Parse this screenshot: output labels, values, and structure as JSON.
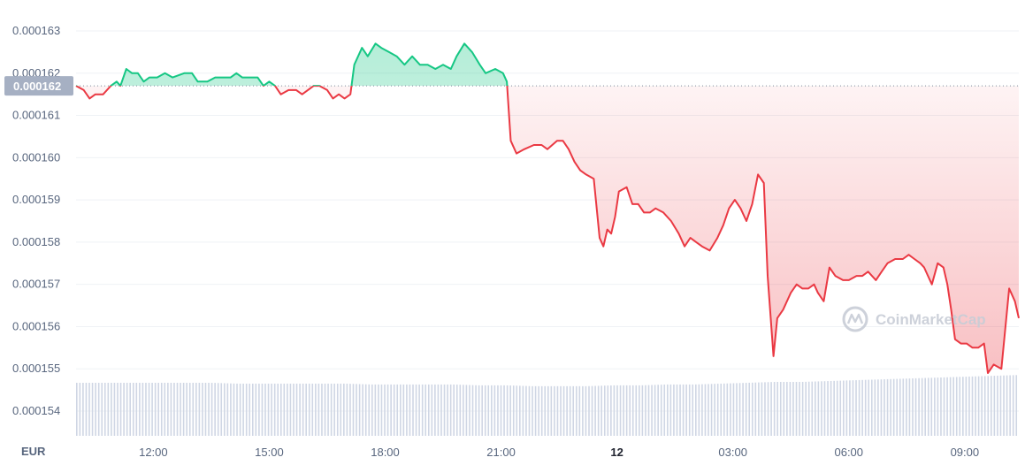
{
  "chart_data": {
    "type": "area",
    "currency_label": "EUR",
    "watermark": "CoinMarketCap",
    "reference_price_label": "0.000162",
    "reference_price": 0.0001617,
    "ylim": [
      0.0001535,
      0.0001635
    ],
    "y_ticks": [
      {
        "value": 0.000163,
        "label": "0.000163"
      },
      {
        "value": 0.000162,
        "label": "0.000162"
      },
      {
        "value": 0.000161,
        "label": "0.000161"
      },
      {
        "value": 0.00016,
        "label": "0.000160"
      },
      {
        "value": 0.000159,
        "label": "0.000159"
      },
      {
        "value": 0.000158,
        "label": "0.000158"
      },
      {
        "value": 0.000157,
        "label": "0.000157"
      },
      {
        "value": 0.000156,
        "label": "0.000156"
      },
      {
        "value": 0.000155,
        "label": "0.000155"
      },
      {
        "value": 0.000154,
        "label": "0.000154"
      }
    ],
    "x_range_hours": [
      10.0,
      34.4
    ],
    "x_ticks": [
      {
        "hour": 12,
        "label": "12:00",
        "bold": false
      },
      {
        "hour": 15,
        "label": "15:00",
        "bold": false
      },
      {
        "hour": 18,
        "label": "18:00",
        "bold": false
      },
      {
        "hour": 21,
        "label": "21:00",
        "bold": false
      },
      {
        "hour": 24,
        "label": "12",
        "bold": true
      },
      {
        "hour": 27,
        "label": "03:00",
        "bold": false
      },
      {
        "hour": 30,
        "label": "06:00",
        "bold": false
      },
      {
        "hour": 33,
        "label": "09:00",
        "bold": false
      }
    ],
    "colors": {
      "up": "#16c784",
      "down": "#ea3943",
      "volume": "#cfd6e4",
      "reference_line": "#808a9d",
      "tag_bg": "#a6b0c3"
    },
    "price_series": [
      [
        10.0,
        0.0001617
      ],
      [
        10.2,
        0.0001616
      ],
      [
        10.35,
        0.0001614
      ],
      [
        10.5,
        0.0001615
      ],
      [
        10.7,
        0.0001615
      ],
      [
        10.9,
        0.0001617
      ],
      [
        11.05,
        0.0001618
      ],
      [
        11.15,
        0.0001617
      ],
      [
        11.3,
        0.0001621
      ],
      [
        11.45,
        0.000162
      ],
      [
        11.6,
        0.000162
      ],
      [
        11.75,
        0.0001618
      ],
      [
        11.9,
        0.0001619
      ],
      [
        12.1,
        0.0001619
      ],
      [
        12.3,
        0.000162
      ],
      [
        12.5,
        0.0001619
      ],
      [
        12.8,
        0.000162
      ],
      [
        13.0,
        0.000162
      ],
      [
        13.15,
        0.0001618
      ],
      [
        13.4,
        0.0001618
      ],
      [
        13.6,
        0.0001619
      ],
      [
        13.8,
        0.0001619
      ],
      [
        14.0,
        0.0001619
      ],
      [
        14.15,
        0.000162
      ],
      [
        14.3,
        0.0001619
      ],
      [
        14.5,
        0.0001619
      ],
      [
        14.7,
        0.0001619
      ],
      [
        14.85,
        0.0001617
      ],
      [
        15.0,
        0.0001618
      ],
      [
        15.15,
        0.0001617
      ],
      [
        15.3,
        0.0001615
      ],
      [
        15.5,
        0.0001616
      ],
      [
        15.7,
        0.0001616
      ],
      [
        15.85,
        0.0001615
      ],
      [
        16.0,
        0.0001616
      ],
      [
        16.15,
        0.0001617
      ],
      [
        16.3,
        0.0001617
      ],
      [
        16.5,
        0.0001616
      ],
      [
        16.65,
        0.0001614
      ],
      [
        16.8,
        0.0001615
      ],
      [
        16.95,
        0.0001614
      ],
      [
        17.1,
        0.0001615
      ],
      [
        17.2,
        0.0001622
      ],
      [
        17.4,
        0.0001626
      ],
      [
        17.55,
        0.0001624
      ],
      [
        17.75,
        0.0001627
      ],
      [
        17.9,
        0.0001626
      ],
      [
        18.1,
        0.0001625
      ],
      [
        18.3,
        0.0001624
      ],
      [
        18.5,
        0.0001622
      ],
      [
        18.7,
        0.0001624
      ],
      [
        18.9,
        0.0001622
      ],
      [
        19.1,
        0.0001622
      ],
      [
        19.3,
        0.0001621
      ],
      [
        19.5,
        0.0001622
      ],
      [
        19.7,
        0.0001621
      ],
      [
        19.85,
        0.0001624
      ],
      [
        20.05,
        0.0001627
      ],
      [
        20.25,
        0.0001625
      ],
      [
        20.45,
        0.0001622
      ],
      [
        20.6,
        0.000162
      ],
      [
        20.85,
        0.0001621
      ],
      [
        21.05,
        0.000162
      ],
      [
        21.15,
        0.0001618
      ],
      [
        21.25,
        0.0001604
      ],
      [
        21.4,
        0.0001601
      ],
      [
        21.6,
        0.0001602
      ],
      [
        21.85,
        0.0001603
      ],
      [
        22.05,
        0.0001603
      ],
      [
        22.2,
        0.0001602
      ],
      [
        22.45,
        0.0001604
      ],
      [
        22.6,
        0.0001604
      ],
      [
        22.75,
        0.0001602
      ],
      [
        22.9,
        0.0001599
      ],
      [
        23.05,
        0.0001597
      ],
      [
        23.2,
        0.0001596
      ],
      [
        23.4,
        0.0001595
      ],
      [
        23.55,
        0.0001581
      ],
      [
        23.65,
        0.0001579
      ],
      [
        23.75,
        0.0001583
      ],
      [
        23.85,
        0.0001582
      ],
      [
        23.95,
        0.0001586
      ],
      [
        24.05,
        0.0001592
      ],
      [
        24.25,
        0.0001593
      ],
      [
        24.4,
        0.0001589
      ],
      [
        24.55,
        0.0001589
      ],
      [
        24.7,
        0.0001587
      ],
      [
        24.85,
        0.0001587
      ],
      [
        25.0,
        0.0001588
      ],
      [
        25.2,
        0.0001587
      ],
      [
        25.4,
        0.0001585
      ],
      [
        25.6,
        0.0001582
      ],
      [
        25.75,
        0.0001579
      ],
      [
        25.9,
        0.0001581
      ],
      [
        26.05,
        0.000158
      ],
      [
        26.2,
        0.0001579
      ],
      [
        26.4,
        0.0001578
      ],
      [
        26.6,
        0.0001581
      ],
      [
        26.75,
        0.0001584
      ],
      [
        26.9,
        0.0001588
      ],
      [
        27.05,
        0.000159
      ],
      [
        27.2,
        0.0001588
      ],
      [
        27.35,
        0.0001585
      ],
      [
        27.5,
        0.0001589
      ],
      [
        27.65,
        0.0001596
      ],
      [
        27.8,
        0.0001594
      ],
      [
        27.9,
        0.0001572
      ],
      [
        28.05,
        0.0001553
      ],
      [
        28.15,
        0.0001562
      ],
      [
        28.3,
        0.0001564
      ],
      [
        28.5,
        0.0001568
      ],
      [
        28.65,
        0.000157
      ],
      [
        28.8,
        0.0001569
      ],
      [
        28.95,
        0.0001569
      ],
      [
        29.1,
        0.000157
      ],
      [
        29.2,
        0.0001568
      ],
      [
        29.35,
        0.0001566
      ],
      [
        29.5,
        0.0001574
      ],
      [
        29.65,
        0.0001572
      ],
      [
        29.85,
        0.0001571
      ],
      [
        30.0,
        0.0001571
      ],
      [
        30.2,
        0.0001572
      ],
      [
        30.35,
        0.0001572
      ],
      [
        30.5,
        0.0001573
      ],
      [
        30.7,
        0.0001571
      ],
      [
        30.85,
        0.0001573
      ],
      [
        31.0,
        0.0001575
      ],
      [
        31.2,
        0.0001576
      ],
      [
        31.4,
        0.0001576
      ],
      [
        31.55,
        0.0001577
      ],
      [
        31.7,
        0.0001576
      ],
      [
        31.85,
        0.0001575
      ],
      [
        31.95,
        0.0001574
      ],
      [
        32.05,
        0.0001572
      ],
      [
        32.15,
        0.000157
      ],
      [
        32.3,
        0.0001575
      ],
      [
        32.45,
        0.0001574
      ],
      [
        32.55,
        0.000157
      ],
      [
        32.65,
        0.0001564
      ],
      [
        32.75,
        0.0001557
      ],
      [
        32.9,
        0.0001556
      ],
      [
        33.05,
        0.0001556
      ],
      [
        33.2,
        0.0001555
      ],
      [
        33.35,
        0.0001555
      ],
      [
        33.5,
        0.0001556
      ],
      [
        33.6,
        0.0001549
      ],
      [
        33.75,
        0.0001551
      ],
      [
        33.95,
        0.000155
      ],
      [
        34.15,
        0.0001569
      ],
      [
        34.3,
        0.0001566
      ],
      [
        34.4,
        0.0001562
      ]
    ],
    "volume_levels": [
      0.62,
      0.62,
      0.62,
      0.62,
      0.62,
      0.62,
      0.61,
      0.61,
      0.61,
      0.61,
      0.61,
      0.6,
      0.6,
      0.6,
      0.6,
      0.59,
      0.59,
      0.58,
      0.58,
      0.58,
      0.59,
      0.59,
      0.6,
      0.6,
      0.61,
      0.62,
      0.63,
      0.63,
      0.64,
      0.65,
      0.66,
      0.67,
      0.68,
      0.69,
      0.7,
      0.71
    ]
  }
}
